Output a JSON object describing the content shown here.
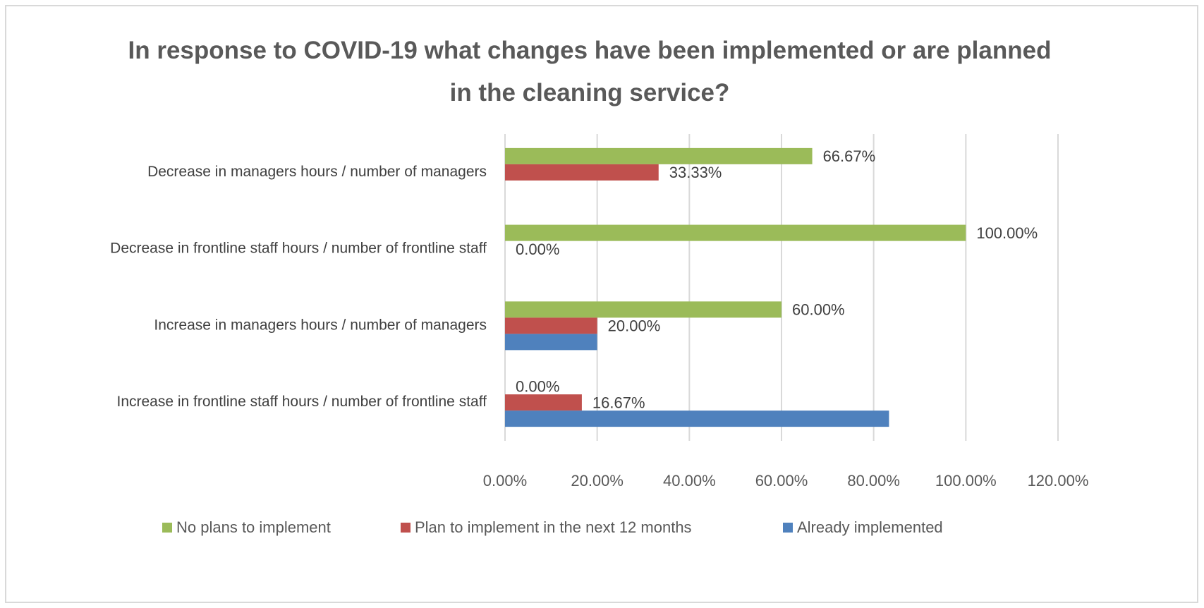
{
  "chart_data": {
    "type": "hbar",
    "title": "In response to COVID-19 what changes have been implemented or are planned in the cleaning service?",
    "categories": [
      "Decrease in managers hours / number of managers",
      "Decrease in frontline staff hours / number of frontline staff",
      "Increase in managers hours / number of managers",
      "Increase in frontline staff hours / number of frontline staff"
    ],
    "series": [
      {
        "name": "No plans to implement",
        "color": "#9bbb59",
        "values": [
          66.67,
          100,
          60,
          0
        ],
        "value_labels": [
          "66.67%",
          "100.00%",
          "60.00%",
          "0.00%"
        ]
      },
      {
        "name": "Plan to implement in the next 12 months",
        "color": "#c0504d",
        "values": [
          33.33,
          0,
          20,
          16.67
        ],
        "value_labels": [
          "33.33%",
          "0.00%",
          "20.00%",
          "16.67%"
        ]
      },
      {
        "name": "Already implemented",
        "color": "#4f81bd",
        "values": [
          null,
          null,
          20,
          83.33
        ]
      }
    ],
    "xlim": [
      0,
      120
    ],
    "xticks": [
      {
        "value": 0,
        "label": "0.00%"
      },
      {
        "value": 20,
        "label": "20.00%"
      },
      {
        "value": 40,
        "label": "40.00%"
      },
      {
        "value": 60,
        "label": "60.00%"
      },
      {
        "value": 80,
        "label": "80.00%"
      },
      {
        "value": 100,
        "label": "100.00%"
      },
      {
        "value": 120,
        "label": "120.00%"
      }
    ],
    "grid": true,
    "legend": "bottom"
  }
}
